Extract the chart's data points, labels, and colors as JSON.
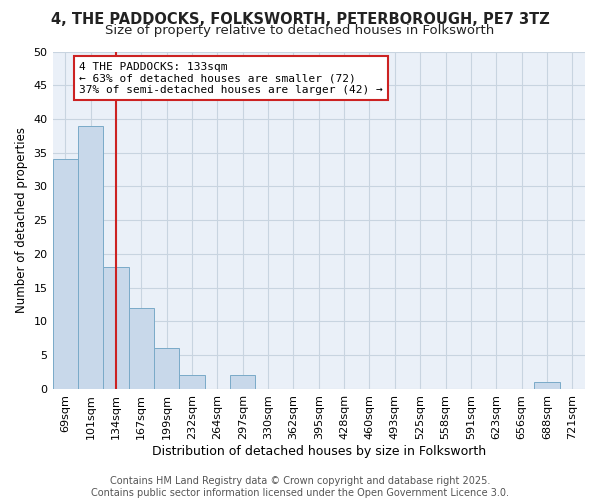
{
  "title": "4, THE PADDOCKS, FOLKSWORTH, PETERBOROUGH, PE7 3TZ",
  "subtitle": "Size of property relative to detached houses in Folksworth",
  "xlabel": "Distribution of detached houses by size in Folksworth",
  "ylabel": "Number of detached properties",
  "bar_color": "#c8d8ea",
  "bar_edge_color": "#7aaac8",
  "grid_color": "#c8d4e0",
  "background_color": "#ffffff",
  "plot_bg_color": "#eaf0f8",
  "red_line_color": "#cc2222",
  "annotation_box_color": "#cc2222",
  "categories": [
    "69sqm",
    "101sqm",
    "134sqm",
    "167sqm",
    "199sqm",
    "232sqm",
    "264sqm",
    "297sqm",
    "330sqm",
    "362sqm",
    "395sqm",
    "428sqm",
    "460sqm",
    "493sqm",
    "525sqm",
    "558sqm",
    "591sqm",
    "623sqm",
    "656sqm",
    "688sqm",
    "721sqm"
  ],
  "values": [
    34,
    39,
    18,
    12,
    6,
    2,
    0,
    2,
    0,
    0,
    0,
    0,
    0,
    0,
    0,
    0,
    0,
    0,
    0,
    1,
    0
  ],
  "ylim": [
    0,
    50
  ],
  "yticks": [
    0,
    5,
    10,
    15,
    20,
    25,
    30,
    35,
    40,
    45,
    50
  ],
  "red_line_index": 2,
  "annotation_line1": "4 THE PADDOCKS: 133sqm",
  "annotation_line2": "← 63% of detached houses are smaller (72)",
  "annotation_line3": "37% of semi-detached houses are larger (42) →",
  "footer_text": "Contains HM Land Registry data © Crown copyright and database right 2025.\nContains public sector information licensed under the Open Government Licence 3.0.",
  "title_fontsize": 10.5,
  "subtitle_fontsize": 9.5,
  "xlabel_fontsize": 9,
  "ylabel_fontsize": 8.5,
  "tick_fontsize": 8,
  "annotation_fontsize": 8,
  "footer_fontsize": 7
}
